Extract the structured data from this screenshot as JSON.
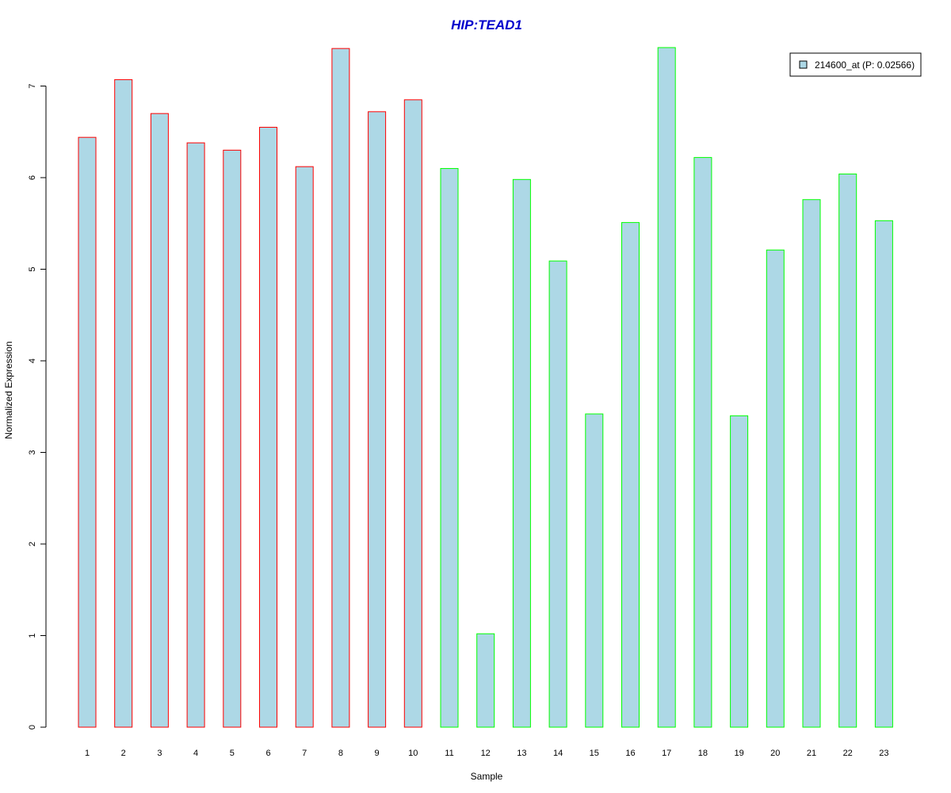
{
  "chart_data": {
    "type": "bar",
    "title": "HIP:TEAD1",
    "xlabel": "Sample",
    "ylabel": "Normalized Expression",
    "categories": [
      "1",
      "2",
      "3",
      "4",
      "5",
      "6",
      "7",
      "8",
      "9",
      "10",
      "11",
      "12",
      "13",
      "14",
      "15",
      "16",
      "17",
      "18",
      "19",
      "20",
      "21",
      "22",
      "23"
    ],
    "series": [
      {
        "name": "214600_at (P: 0.02566)",
        "values": [
          6.44,
          7.07,
          6.7,
          6.38,
          6.3,
          6.55,
          6.12,
          7.41,
          6.72,
          6.85,
          6.1,
          1.02,
          5.98,
          5.09,
          3.42,
          5.51,
          7.42,
          6.22,
          3.4,
          5.21,
          5.76,
          6.04,
          5.53
        ]
      }
    ],
    "groups": [
      {
        "from": 1,
        "to": 10,
        "border_color": "#ff0000"
      },
      {
        "from": 11,
        "to": 23,
        "border_color": "#00ff00"
      }
    ],
    "ylim": [
      0,
      7.42
    ],
    "yticks": [
      0,
      1,
      2,
      3,
      4,
      5,
      6,
      7
    ],
    "grid": false,
    "legend_position": "top-right"
  },
  "colors": {
    "title": "#0000cc",
    "bar_fill": "#add8e6",
    "axis": "#000000"
  }
}
